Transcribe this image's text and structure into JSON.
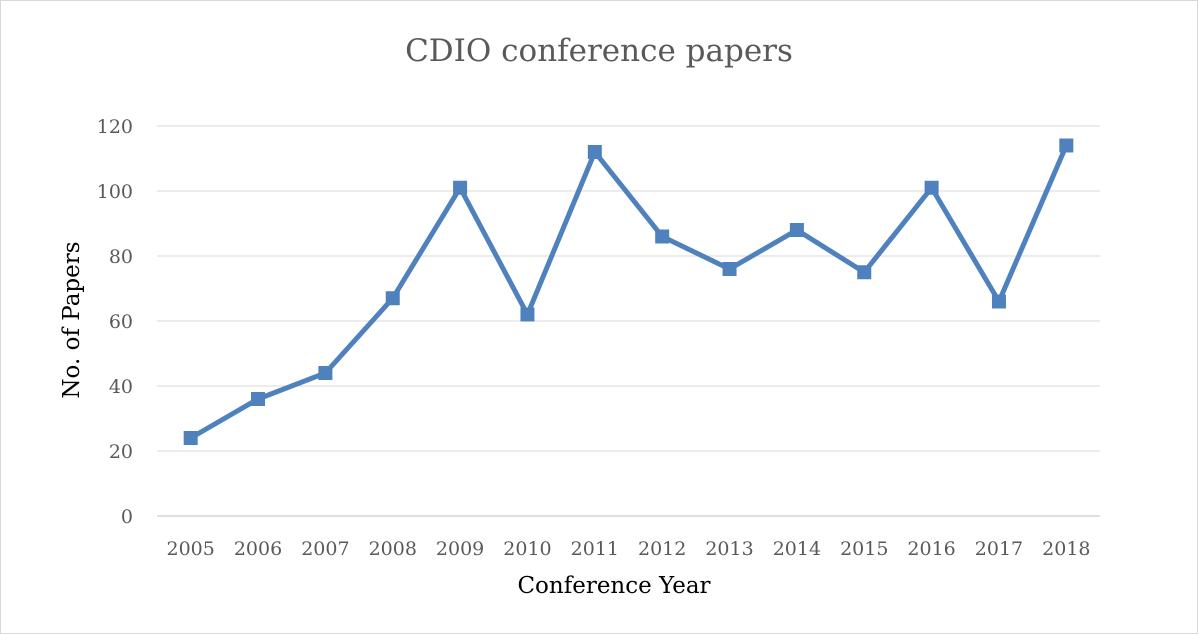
{
  "chart_data": {
    "type": "line",
    "title": "CDIO conference papers",
    "xlabel": "Conference Year",
    "ylabel": "No. of Papers",
    "categories": [
      "2005",
      "2006",
      "2007",
      "2008",
      "2009",
      "2010",
      "2011",
      "2012",
      "2013",
      "2014",
      "2015",
      "2016",
      "2017",
      "2018"
    ],
    "series": [
      {
        "values": [
          24,
          36,
          44,
          67,
          101,
          62,
          112,
          86,
          76,
          88,
          75,
          101,
          66,
          114
        ]
      }
    ],
    "ylim": [
      0,
      120
    ],
    "yticks": [
      "0",
      "20",
      "40",
      "60",
      "80",
      "100",
      "120"
    ],
    "grid": true,
    "legend": "none",
    "colors": {
      "series": "#4f81bd",
      "grid": "#d9d9d9",
      "text": "#595959",
      "border": "#d9d9d9"
    }
  }
}
